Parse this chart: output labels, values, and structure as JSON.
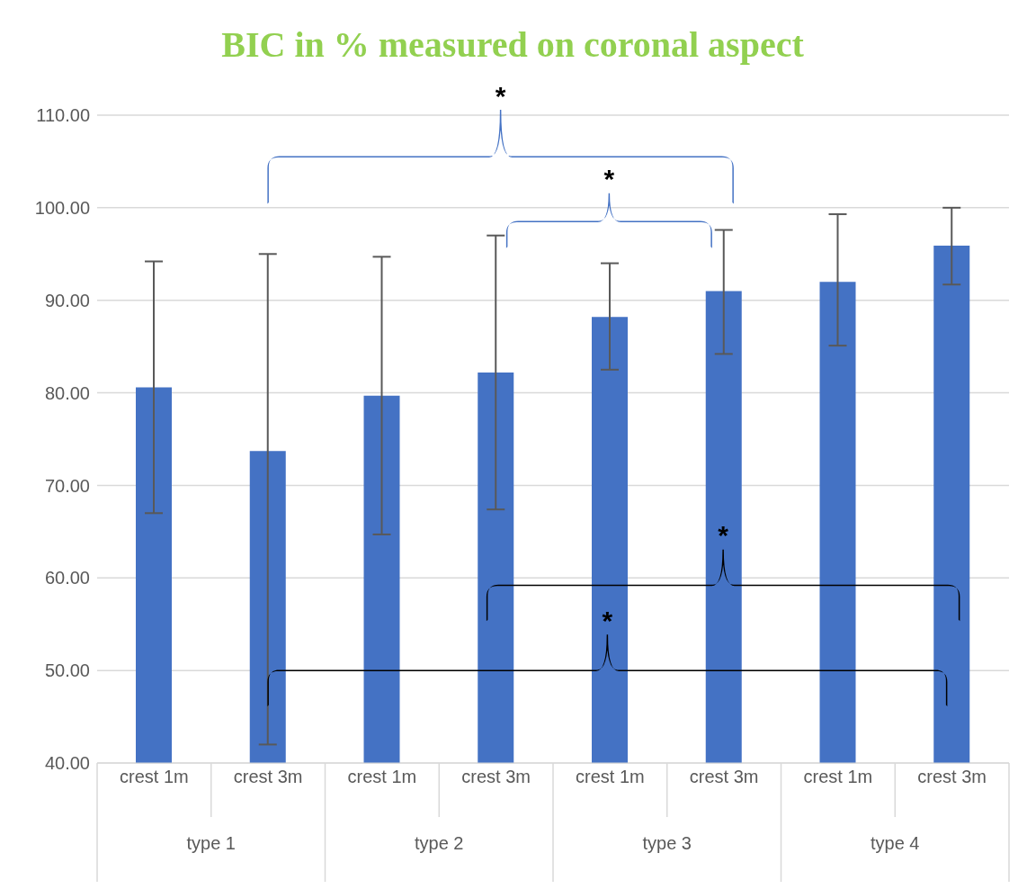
{
  "chart_data": {
    "type": "bar",
    "title": "BIC in % measured on coronal aspect",
    "categories": [
      "crest 1m",
      "crest 3m",
      "crest 1m",
      "crest 3m",
      "crest 1m",
      "crest 3m",
      "crest 1m",
      "crest 3m"
    ],
    "values": [
      80.6,
      73.7,
      79.7,
      82.2,
      88.2,
      91.0,
      92.0,
      95.9
    ],
    "errors": [
      [
        67.0,
        94.2
      ],
      [
        42.0,
        95.0
      ],
      [
        64.7,
        94.7
      ],
      [
        67.4,
        97.0
      ],
      [
        82.5,
        94.0
      ],
      [
        84.2,
        97.6
      ],
      [
        85.1,
        99.3
      ],
      [
        91.7,
        100.0
      ]
    ],
    "color": "#4472c4",
    "ylim": [
      40,
      110
    ],
    "yticks": [
      {
        "value": 40,
        "label": "40.00"
      },
      {
        "value": 50,
        "label": "50.00"
      },
      {
        "value": 60,
        "label": "60.00"
      },
      {
        "value": 70,
        "label": "70.00"
      },
      {
        "value": 80,
        "label": "80.00"
      },
      {
        "value": 90,
        "label": "90.00"
      },
      {
        "value": 100,
        "label": "100.00"
      },
      {
        "value": 110,
        "label": "110.00"
      }
    ],
    "grid": "y",
    "legend": false,
    "annotations": [
      "*",
      "*",
      "*",
      "*",
      "type 1",
      "type 2",
      "type 3",
      "type 4"
    ]
  }
}
